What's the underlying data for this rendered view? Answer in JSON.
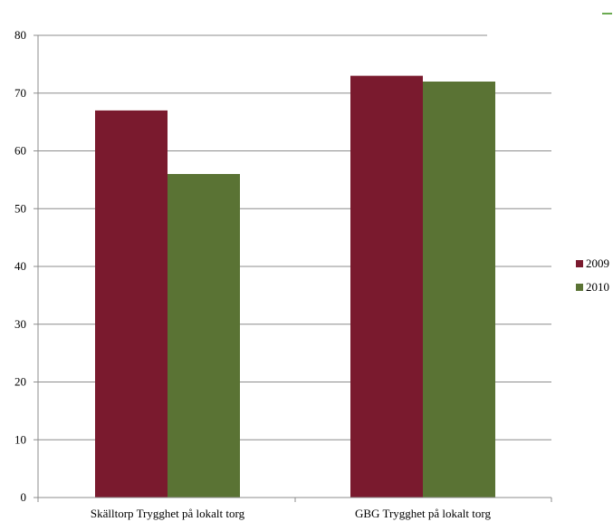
{
  "chart_data": {
    "type": "bar",
    "title": "",
    "xlabel": "",
    "ylabel": "",
    "categories": [
      "Skälltorp Trygghet på lokalt torg",
      "GBG Trygghet på lokalt torg"
    ],
    "series": [
      {
        "name": "2009",
        "values": [
          67,
          73
        ],
        "color": "#7a1a2e"
      },
      {
        "name": "2010",
        "values": [
          56,
          72
        ],
        "color": "#5a7334"
      }
    ],
    "ylim": [
      0,
      80
    ],
    "yticks": [
      0,
      10,
      20,
      30,
      40,
      50,
      60,
      70,
      80
    ],
    "grid": true,
    "legend_position": "right"
  }
}
